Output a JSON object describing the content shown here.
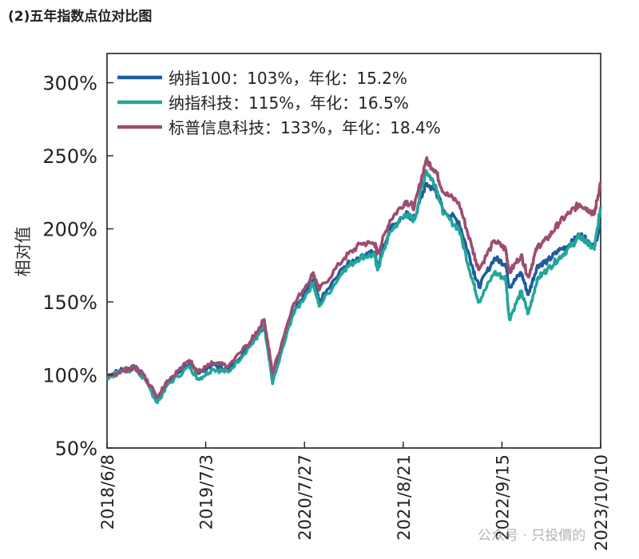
{
  "heading": "(2)五年指数点位对比图",
  "watermark": "公众号 · 只投價的",
  "chart_data": {
    "type": "line",
    "ylabel": "相对值",
    "ylim": [
      50,
      320
    ],
    "yticks": [
      50,
      100,
      150,
      200,
      250,
      300
    ],
    "ytick_labels": [
      "50%",
      "100%",
      "150%",
      "200%",
      "250%",
      "300%"
    ],
    "xlim": [
      "2018-06-08",
      "2023-10-10"
    ],
    "xticks": [
      "2018-06-08",
      "2019-07-03",
      "2020-07-27",
      "2021-08-21",
      "2022-09-15",
      "2023-10-10"
    ],
    "xtick_labels": [
      "2018/6/8",
      "2019/7/3",
      "2020/7/27",
      "2021/8/21",
      "2022/9/15",
      "2023/10/10"
    ],
    "legend_position": "top-left",
    "grid": false,
    "x": [
      "2018-06-08",
      "2018-08-08",
      "2018-09-26",
      "2018-10-30",
      "2018-12-24",
      "2019-01-31",
      "2019-04-30",
      "2019-06-03",
      "2019-07-31",
      "2019-09-30",
      "2019-12-31",
      "2020-02-19",
      "2020-03-23",
      "2020-06-08",
      "2020-08-31",
      "2020-09-23",
      "2020-12-31",
      "2021-03-08",
      "2021-04-30",
      "2021-05-12",
      "2021-06-30",
      "2021-08-31",
      "2021-10-04",
      "2021-11-19",
      "2021-12-27",
      "2022-01-27",
      "2022-03-29",
      "2022-05-20",
      "2022-06-16",
      "2022-08-16",
      "2022-09-30",
      "2022-10-14",
      "2022-11-30",
      "2022-12-28",
      "2023-02-02",
      "2023-03-13",
      "2023-04-28",
      "2023-06-15",
      "2023-07-19",
      "2023-08-18",
      "2023-09-15",
      "2023-10-10"
    ],
    "series": [
      {
        "name": "纳指100：103%，年化：15.2%",
        "color": "#1f5d99",
        "values": [
          99,
          104,
          105,
          100,
          84,
          95,
          108,
          101,
          107,
          104,
          122,
          134,
          99,
          142,
          165,
          150,
          174,
          182,
          184,
          175,
          200,
          210,
          207,
          231,
          226,
          213,
          205,
          175,
          160,
          180,
          176,
          160,
          170,
          155,
          175,
          178,
          185,
          190,
          196,
          192,
          188,
          203
        ]
      },
      {
        "name": "纳指科技：115%，年化：16.5%",
        "color": "#22a69a",
        "values": [
          98,
          103,
          104,
          98,
          81,
          93,
          106,
          97,
          104,
          102,
          121,
          133,
          94,
          140,
          163,
          147,
          172,
          181,
          182,
          172,
          198,
          210,
          206,
          240,
          230,
          210,
          200,
          166,
          150,
          170,
          166,
          138,
          157,
          142,
          166,
          172,
          180,
          188,
          195,
          190,
          186,
          215
        ]
      },
      {
        "name": "标普信息科技：133%，年化：18.4%",
        "color": "#9c4d70",
        "values": [
          98,
          103,
          105,
          100,
          85,
          96,
          110,
          102,
          108,
          106,
          124,
          138,
          101,
          146,
          170,
          158,
          180,
          190,
          190,
          183,
          206,
          219,
          215,
          247,
          240,
          225,
          218,
          187,
          172,
          192,
          186,
          170,
          182,
          167,
          188,
          193,
          204,
          212,
          217,
          214,
          210,
          232
        ]
      }
    ]
  }
}
